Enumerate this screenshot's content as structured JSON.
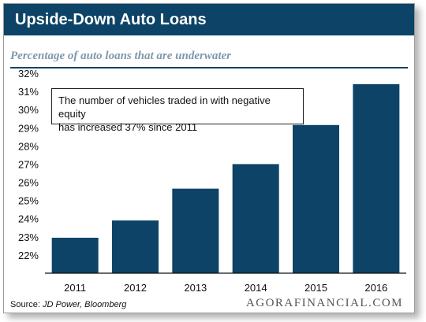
{
  "header": {
    "title": "Upside-Down Auto Loans"
  },
  "subtitle": "Percentage of auto loans that are underwater",
  "annotation": {
    "line1": "The number of vehicles traded in with negative equity",
    "line2": "has increased 37% since 2011"
  },
  "source": {
    "label": "Source:",
    "text": "JD Power, Bloomberg"
  },
  "brand": "AGORAFINANCIAL.COM",
  "colors": {
    "bar": "#0c4366",
    "header": "#0c4366",
    "subtitle": "#7f98ab"
  },
  "chart_data": {
    "type": "bar",
    "title": "",
    "xlabel": "",
    "ylabel": "",
    "categories": [
      "2011",
      "2012",
      "2013",
      "2014",
      "2015",
      "2016"
    ],
    "values": [
      22.95,
      23.9,
      25.65,
      27.0,
      29.15,
      31.4
    ],
    "ylim": [
      21.0,
      32
    ],
    "yticks": [
      "22%",
      "23%",
      "24%",
      "25%",
      "26%",
      "27%",
      "28%",
      "29%",
      "30%",
      "31%",
      "32%"
    ],
    "ytick_values": [
      22,
      23,
      24,
      25,
      26,
      27,
      28,
      29,
      30,
      31,
      32
    ],
    "grid": false,
    "legend": "none"
  }
}
